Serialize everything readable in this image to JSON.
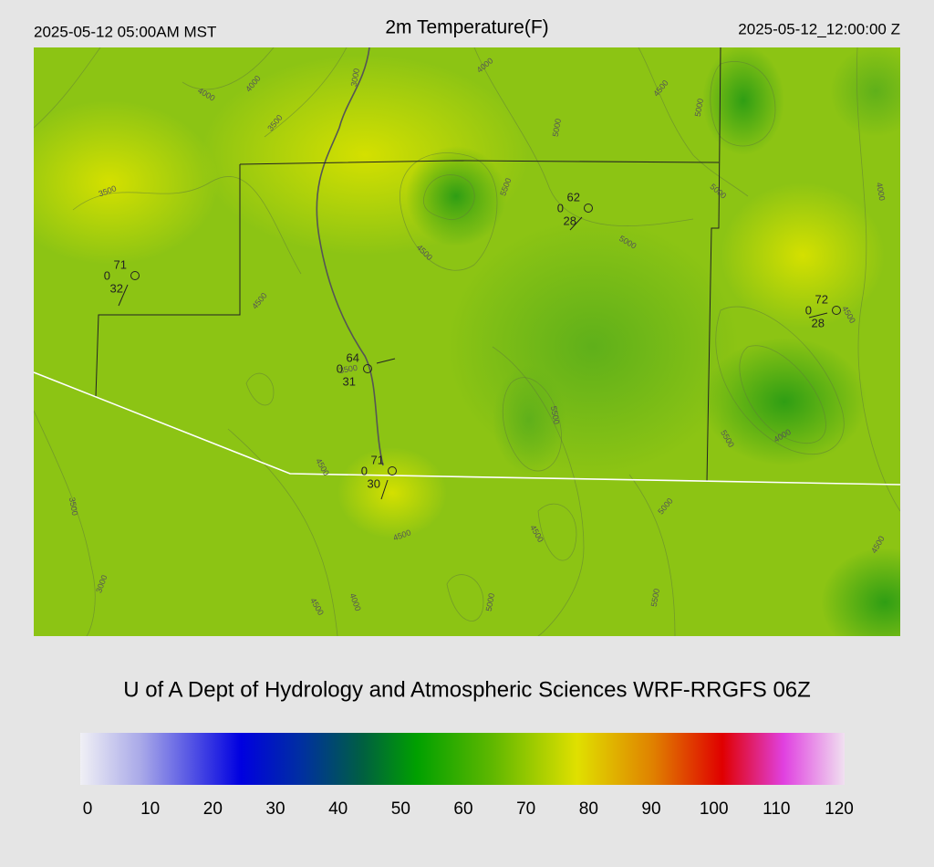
{
  "header": {
    "left": "2025-05-12 05:00AM MST",
    "title": "2m Temperature(F)",
    "right": "2025-05-12_12:00:00 Z"
  },
  "stations": [
    {
      "temperature": 71,
      "wind": 0,
      "dewpoint": 32
    },
    {
      "temperature": 64,
      "wind": 0,
      "dewpoint": 31
    },
    {
      "temperature": 71,
      "wind": 0,
      "dewpoint": 30
    },
    {
      "temperature": 62,
      "wind": 0,
      "dewpoint": 28
    },
    {
      "temperature": 72,
      "wind": 0,
      "dewpoint": 28
    }
  ],
  "contour_labels": [
    4000,
    4000,
    3000,
    4000,
    3500,
    5000,
    4500,
    5000,
    3500,
    5500,
    5000,
    4000,
    5000,
    4500,
    4500,
    3500,
    4500,
    5500,
    4000,
    5500,
    4500,
    3500,
    5000,
    4500,
    4500,
    4500,
    3000,
    4000,
    5000,
    5500,
    4500
  ],
  "footer": {
    "title": "U of A Dept of Hydrology and Atmospheric Sciences WRF-RRGFS 06Z"
  },
  "colorbar": {
    "ticks": [
      0,
      10,
      20,
      30,
      40,
      50,
      60,
      70,
      80,
      90,
      100,
      110,
      120
    ]
  }
}
